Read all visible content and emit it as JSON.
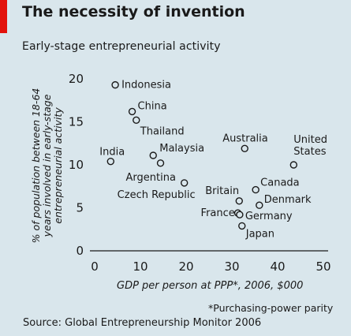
{
  "header": {
    "title": "The necessity of invention",
    "subtitle": "Early-stage entrepreneurial activity"
  },
  "footer": {
    "footnote": "*Purchasing-power parity",
    "source": "Source: Global Entrepreneurship Monitor 2006"
  },
  "colors": {
    "accent": "#e3120b",
    "background": "#d9e6ec",
    "text": "#1a1a1a"
  },
  "chart_data": {
    "type": "scatter",
    "title": "The necessity of invention",
    "subtitle": "Early-stage entrepreneurial activity",
    "xlabel": "GDP per person at PPP*, 2006, $000",
    "ylabel_lines": [
      "% of population between 18-64",
      "years involved in early-stage",
      "entrepreneurial activity"
    ],
    "xlim": [
      0,
      50
    ],
    "ylim": [
      0,
      20
    ],
    "x_ticks": [
      0,
      10,
      20,
      30,
      40,
      50
    ],
    "y_ticks": [
      0,
      5,
      10,
      15,
      20
    ],
    "grid": false,
    "legend": "none",
    "points": [
      {
        "label": "Indonesia",
        "x": 4.5,
        "y": 19.3
      },
      {
        "label": "China",
        "x": 8.2,
        "y": 16.2
      },
      {
        "label": "Thailand",
        "x": 9.1,
        "y": 15.2
      },
      {
        "label": "India",
        "x": 3.5,
        "y": 10.4
      },
      {
        "label": "Malaysia",
        "x": 12.8,
        "y": 11.1
      },
      {
        "label": "Argentina",
        "x": 14.4,
        "y": 10.2
      },
      {
        "label": "Czech Republic",
        "x": 19.6,
        "y": 7.9
      },
      {
        "label": "Australia",
        "x": 32.8,
        "y": 11.9
      },
      {
        "label": "United States",
        "x": 43.5,
        "y": 10.0
      },
      {
        "label": "Canada",
        "x": 35.2,
        "y": 7.1
      },
      {
        "label": "Britain",
        "x": 31.6,
        "y": 5.8
      },
      {
        "label": "Denmark",
        "x": 36.0,
        "y": 5.3
      },
      {
        "label": "France",
        "x": 31.3,
        "y": 4.4
      },
      {
        "label": "Germany",
        "x": 31.7,
        "y": 4.2
      },
      {
        "label": "Japan",
        "x": 32.2,
        "y": 2.9
      }
    ]
  }
}
